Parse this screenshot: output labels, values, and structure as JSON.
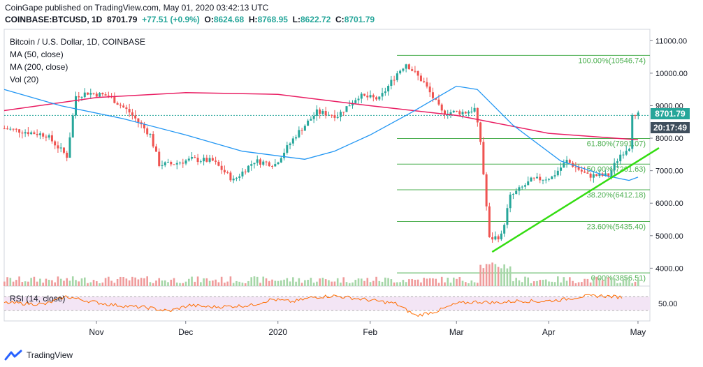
{
  "header": {
    "publisher_line": "CoinGape published on TradingView.com, May 01, 2020 03:42:13 UTC",
    "symbol": "COINBASE:BTCUSD, 1D",
    "last": "8701.79",
    "change": "+77.51 (+0.9%)",
    "o_label": "O:",
    "o": "8624.68",
    "h_label": "H:",
    "h": "8768.95",
    "l_label": "L:",
    "l": "8622.72",
    "c_label": "C:",
    "c": "8701.79"
  },
  "legend": {
    "title": "Bitcoin / U.S. Dollar, 1D, COINBASE",
    "ma50": "MA (50, close)",
    "ma200": "MA (200, close)",
    "vol": "Vol (20)",
    "rsi": "RSI (14, close)"
  },
  "price_label": "8701.79",
  "time_label": "20:17:49",
  "colors": {
    "up": "#26a69a",
    "down": "#ef5350",
    "ma50": "#2196f3",
    "ma200": "#e91e63",
    "fib": "#4caf50",
    "trend": "#33dd11",
    "rsi": "#ff6d00",
    "rsi_band": "#f3e5f5",
    "price_box": "#26a69a",
    "time_box": "#3f4e5c"
  },
  "footer": {
    "brand": "TradingView",
    "logo_icon": "tradingview-logo-icon"
  },
  "chart_data": {
    "type": "candlestick",
    "yaxis_ticks": [
      "11000.00",
      "10000.00",
      "9000.00",
      "8000.00",
      "7000.00",
      "6000.00",
      "5000.00",
      "4000.00"
    ],
    "ylim": [
      3450,
      11350
    ],
    "xaxis_ticks": [
      "Nov",
      "Dec",
      "2020",
      "Feb",
      "Mar",
      "Apr",
      "May"
    ],
    "x_range": [
      "2019-10-01",
      "2020-05-01"
    ],
    "fib_levels": [
      {
        "label": "100.00%(10546.74)",
        "value": 10546.74
      },
      {
        "label": "61.80%(7991.07)",
        "value": 7991.07
      },
      {
        "label": "50.00%(7201.63)",
        "value": 7201.63
      },
      {
        "label": "38.20%(6412.18)",
        "value": 6412.18
      },
      {
        "label": "23.60%(5435.40)",
        "value": 5435.4
      },
      {
        "label": "0.00%(3856.51)",
        "value": 3856.51
      }
    ],
    "trendline": {
      "from": {
        "date": "2020-03-13",
        "value": 4500
      },
      "to": {
        "date": "2020-05-01",
        "value": 7700
      }
    },
    "close_series": [
      [
        "2019-10-01",
        8300
      ],
      [
        "2019-10-08",
        8200
      ],
      [
        "2019-10-15",
        8100
      ],
      [
        "2019-10-22",
        7450
      ],
      [
        "2019-10-25",
        9300
      ],
      [
        "2019-10-29",
        9400
      ],
      [
        "2019-11-05",
        9300
      ],
      [
        "2019-11-12",
        8800
      ],
      [
        "2019-11-19",
        8100
      ],
      [
        "2019-11-22",
        7200
      ],
      [
        "2019-11-26",
        7200
      ],
      [
        "2019-12-03",
        7350
      ],
      [
        "2019-12-10",
        7300
      ],
      [
        "2019-12-17",
        6700
      ],
      [
        "2019-12-24",
        7300
      ],
      [
        "2019-12-31",
        7200
      ],
      [
        "2020-01-07",
        8100
      ],
      [
        "2020-01-14",
        8800
      ],
      [
        "2020-01-21",
        8700
      ],
      [
        "2020-01-28",
        9300
      ],
      [
        "2020-02-04",
        9200
      ],
      [
        "2020-02-10",
        10000
      ],
      [
        "2020-02-13",
        10300
      ],
      [
        "2020-02-19",
        9700
      ],
      [
        "2020-02-25",
        8800
      ],
      [
        "2020-03-04",
        8800
      ],
      [
        "2020-03-07",
        8900
      ],
      [
        "2020-03-09",
        7900
      ],
      [
        "2020-03-12",
        4900
      ],
      [
        "2020-03-16",
        5000
      ],
      [
        "2020-03-19",
        6200
      ],
      [
        "2020-03-26",
        6700
      ],
      [
        "2020-04-02",
        6800
      ],
      [
        "2020-04-07",
        7300
      ],
      [
        "2020-04-14",
        6850
      ],
      [
        "2020-04-21",
        6850
      ],
      [
        "2020-04-25",
        7500
      ],
      [
        "2020-04-28",
        7750
      ],
      [
        "2020-04-29",
        8800
      ],
      [
        "2020-04-30",
        8624
      ],
      [
        "2020-05-01",
        8702
      ]
    ],
    "ma50_series": [
      [
        "2019-10-01",
        9500
      ],
      [
        "2019-10-20",
        9000
      ],
      [
        "2019-11-10",
        8600
      ],
      [
        "2019-12-01",
        8100
      ],
      [
        "2019-12-20",
        7600
      ],
      [
        "2020-01-10",
        7350
      ],
      [
        "2020-01-20",
        7600
      ],
      [
        "2020-02-01",
        8100
      ],
      [
        "2020-02-15",
        8800
      ],
      [
        "2020-03-01",
        9600
      ],
      [
        "2020-03-08",
        9500
      ],
      [
        "2020-03-20",
        8400
      ],
      [
        "2020-04-05",
        7300
      ],
      [
        "2020-04-20",
        6850
      ],
      [
        "2020-04-28",
        6700
      ],
      [
        "2020-05-01",
        6800
      ]
    ],
    "ma200_series": [
      [
        "2019-10-01",
        8850
      ],
      [
        "2019-11-01",
        9250
      ],
      [
        "2019-12-01",
        9400
      ],
      [
        "2020-01-01",
        9350
      ],
      [
        "2020-02-01",
        9000
      ],
      [
        "2020-03-01",
        8700
      ],
      [
        "2020-04-01",
        8150
      ],
      [
        "2020-05-01",
        7950
      ]
    ],
    "rsi_ticks": [
      "50.00"
    ],
    "rsi_series": [
      [
        0,
        52
      ],
      [
        5,
        50
      ],
      [
        10,
        48
      ],
      [
        15,
        70
      ],
      [
        20,
        58
      ],
      [
        25,
        48
      ],
      [
        30,
        42
      ],
      [
        35,
        38
      ],
      [
        40,
        28
      ],
      [
        45,
        45
      ],
      [
        50,
        40
      ],
      [
        55,
        42
      ],
      [
        60,
        45
      ],
      [
        65,
        62
      ],
      [
        70,
        55
      ],
      [
        75,
        68
      ],
      [
        80,
        72
      ],
      [
        85,
        65
      ],
      [
        90,
        58
      ],
      [
        95,
        50
      ],
      [
        100,
        15
      ],
      [
        105,
        28
      ],
      [
        110,
        50
      ],
      [
        115,
        55
      ],
      [
        120,
        52
      ],
      [
        125,
        58
      ],
      [
        130,
        56
      ],
      [
        135,
        60
      ],
      [
        140,
        70
      ],
      [
        145,
        72
      ],
      [
        150,
        68
      ]
    ]
  }
}
